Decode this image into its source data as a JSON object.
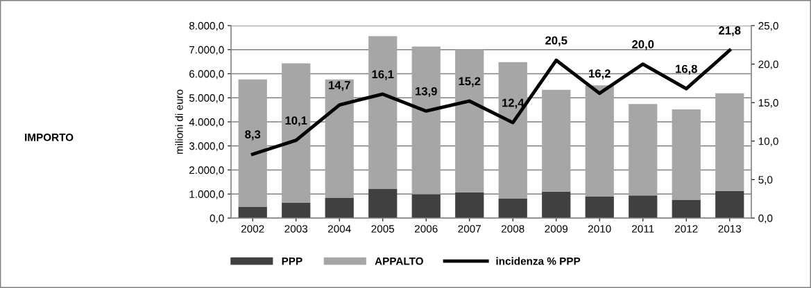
{
  "chart_data": {
    "type": "bar",
    "stacked": true,
    "ylabel": "milioni di euro",
    "annotations": [
      "IMPORTO"
    ],
    "categories": [
      "2002",
      "2003",
      "2004",
      "2005",
      "2006",
      "2007",
      "2008",
      "2009",
      "2010",
      "2011",
      "2012",
      "2013"
    ],
    "series": [
      {
        "name": "PPP",
        "color": "#404040",
        "values": [
          460,
          630,
          850,
          1210,
          990,
          1070,
          820,
          1100,
          890,
          940,
          760,
          1130
        ]
      },
      {
        "name": "APPALTO",
        "color": "#a6a6a6",
        "values": [
          5300,
          5800,
          4910,
          6350,
          6140,
          5940,
          5660,
          4230,
          4630,
          3800,
          3760,
          4060
        ]
      },
      {
        "name": "incidenza % PPP",
        "type": "line",
        "axis": "y2",
        "color": "#000000",
        "values": [
          8.3,
          10.1,
          14.7,
          16.1,
          13.9,
          15.2,
          12.4,
          20.5,
          16.2,
          20.0,
          16.8,
          21.8
        ],
        "value_labels": [
          "8,3",
          "10,1",
          "14,7",
          "16,1",
          "13,9",
          "15,2",
          "12,4",
          "20,5",
          "16,2",
          "20,0",
          "16,8",
          "21,8"
        ]
      }
    ],
    "ylim": [
      0,
      8000
    ],
    "yticks": [
      {
        "value": 0,
        "label": "0,0"
      },
      {
        "value": 1000,
        "label": "1.000,0"
      },
      {
        "value": 2000,
        "label": "2.000,0"
      },
      {
        "value": 3000,
        "label": "3.000,0"
      },
      {
        "value": 4000,
        "label": "4.000,0"
      },
      {
        "value": 5000,
        "label": "5.000,0"
      },
      {
        "value": 6000,
        "label": "6.000,0"
      },
      {
        "value": 7000,
        "label": "7.000,0"
      },
      {
        "value": 8000,
        "label": "8.000,0"
      }
    ],
    "y2lim": [
      0,
      25
    ],
    "y2ticks": [
      {
        "value": 0,
        "label": "0,0"
      },
      {
        "value": 5,
        "label": "5,0"
      },
      {
        "value": 10,
        "label": "10,0"
      },
      {
        "value": 15,
        "label": "15,0"
      },
      {
        "value": 20,
        "label": "20,0"
      },
      {
        "value": 25,
        "label": "25,0"
      }
    ],
    "grid": "y",
    "legend": "bottom",
    "marker": "none",
    "line_style": "solid"
  }
}
